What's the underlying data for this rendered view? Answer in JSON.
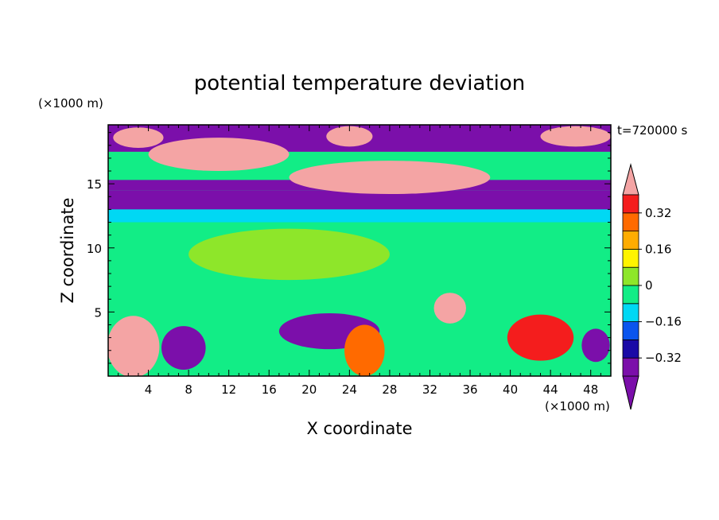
{
  "chart_data": {
    "type": "heatmap",
    "title": "potential temperature deviation",
    "xlabel": "X coordinate",
    "ylabel": "Z coordinate",
    "x_unit": "(×1000 m)",
    "y_unit": "(×1000 m)",
    "time_label": "t=720000 s",
    "xlim": [
      0,
      50
    ],
    "ylim": [
      0,
      19.6
    ],
    "x_ticks": [
      4,
      8,
      12,
      16,
      20,
      24,
      28,
      32,
      36,
      40,
      44,
      48
    ],
    "x_tick_labels": [
      "4",
      "8",
      "12",
      "16",
      "20",
      "24",
      "28",
      "32",
      "36",
      "40",
      "44",
      "48"
    ],
    "y_ticks": [
      5,
      10,
      15
    ],
    "y_tick_labels": [
      "5",
      "10",
      "15"
    ],
    "colorbar": {
      "levels": [
        -0.4,
        -0.32,
        -0.24,
        -0.16,
        -0.08,
        0,
        0.08,
        0.16,
        0.24,
        0.32,
        0.4
      ],
      "labeled_ticks": [
        "0.32",
        "0.16",
        "0",
        "−0.16",
        "−0.32"
      ],
      "labeled_values": [
        0.32,
        0.16,
        0,
        -0.16,
        -0.32
      ],
      "colors_low_to_high": [
        "#7b0faa",
        "#1a0aa6",
        "#0a55ee",
        "#00d8f4",
        "#12ed86",
        "#8ee62a",
        "#fff400",
        "#ffac00",
        "#ff6a00",
        "#f41d1d"
      ],
      "under_color": "#7b0faa",
      "over_color": "#f4a4a4"
    },
    "fields": {
      "background_band": "#12ed86",
      "regions": [
        {
          "kind": "band",
          "y": [
            17.5,
            19.6
          ],
          "value": -0.45
        },
        {
          "kind": "band",
          "y": [
            13.0,
            14.5
          ],
          "value": -0.35
        },
        {
          "kind": "band",
          "y": [
            14.5,
            15.3
          ],
          "value": -0.42
        },
        {
          "kind": "band",
          "y": [
            12.0,
            13.0
          ],
          "value": -0.12
        },
        {
          "kind": "band",
          "y": [
            5.0,
            12.0
          ],
          "value": -0.05
        },
        {
          "kind": "blob",
          "x": 11,
          "y": 17.3,
          "rx": 7,
          "ry": 1.3,
          "value": 0.45
        },
        {
          "kind": "blob",
          "x": 28,
          "y": 15.5,
          "rx": 10,
          "ry": 1.3,
          "value": 0.45
        },
        {
          "kind": "blob",
          "x": 3,
          "y": 18.6,
          "rx": 2.5,
          "ry": 0.8,
          "value": 0.45
        },
        {
          "kind": "blob",
          "x": 24,
          "y": 18.7,
          "rx": 2.3,
          "ry": 0.8,
          "value": 0.45
        },
        {
          "kind": "blob",
          "x": 46.5,
          "y": 18.7,
          "rx": 3.5,
          "ry": 0.8,
          "value": 0.45
        },
        {
          "kind": "blob",
          "x": 18,
          "y": 9.5,
          "rx": 10,
          "ry": 2.0,
          "value": 0.03
        },
        {
          "kind": "blob",
          "x": 2.5,
          "y": 2.3,
          "rx": 2.6,
          "ry": 2.4,
          "value": 0.45
        },
        {
          "kind": "blob",
          "x": 7.5,
          "y": 2.2,
          "rx": 2.2,
          "ry": 1.7,
          "value": -0.4
        },
        {
          "kind": "blob",
          "x": 22,
          "y": 3.5,
          "rx": 5,
          "ry": 1.4,
          "value": -0.45
        },
        {
          "kind": "blob",
          "x": 25.5,
          "y": 2.0,
          "rx": 2.0,
          "ry": 2.0,
          "value": 0.3
        },
        {
          "kind": "blob",
          "x": 34,
          "y": 5.3,
          "rx": 1.6,
          "ry": 1.2,
          "value": 0.45
        },
        {
          "kind": "blob",
          "x": 43,
          "y": 3.0,
          "rx": 3.3,
          "ry": 1.8,
          "value": 0.35
        },
        {
          "kind": "blob",
          "x": 48.5,
          "y": 2.4,
          "rx": 1.4,
          "ry": 1.3,
          "value": -0.42
        }
      ]
    }
  }
}
